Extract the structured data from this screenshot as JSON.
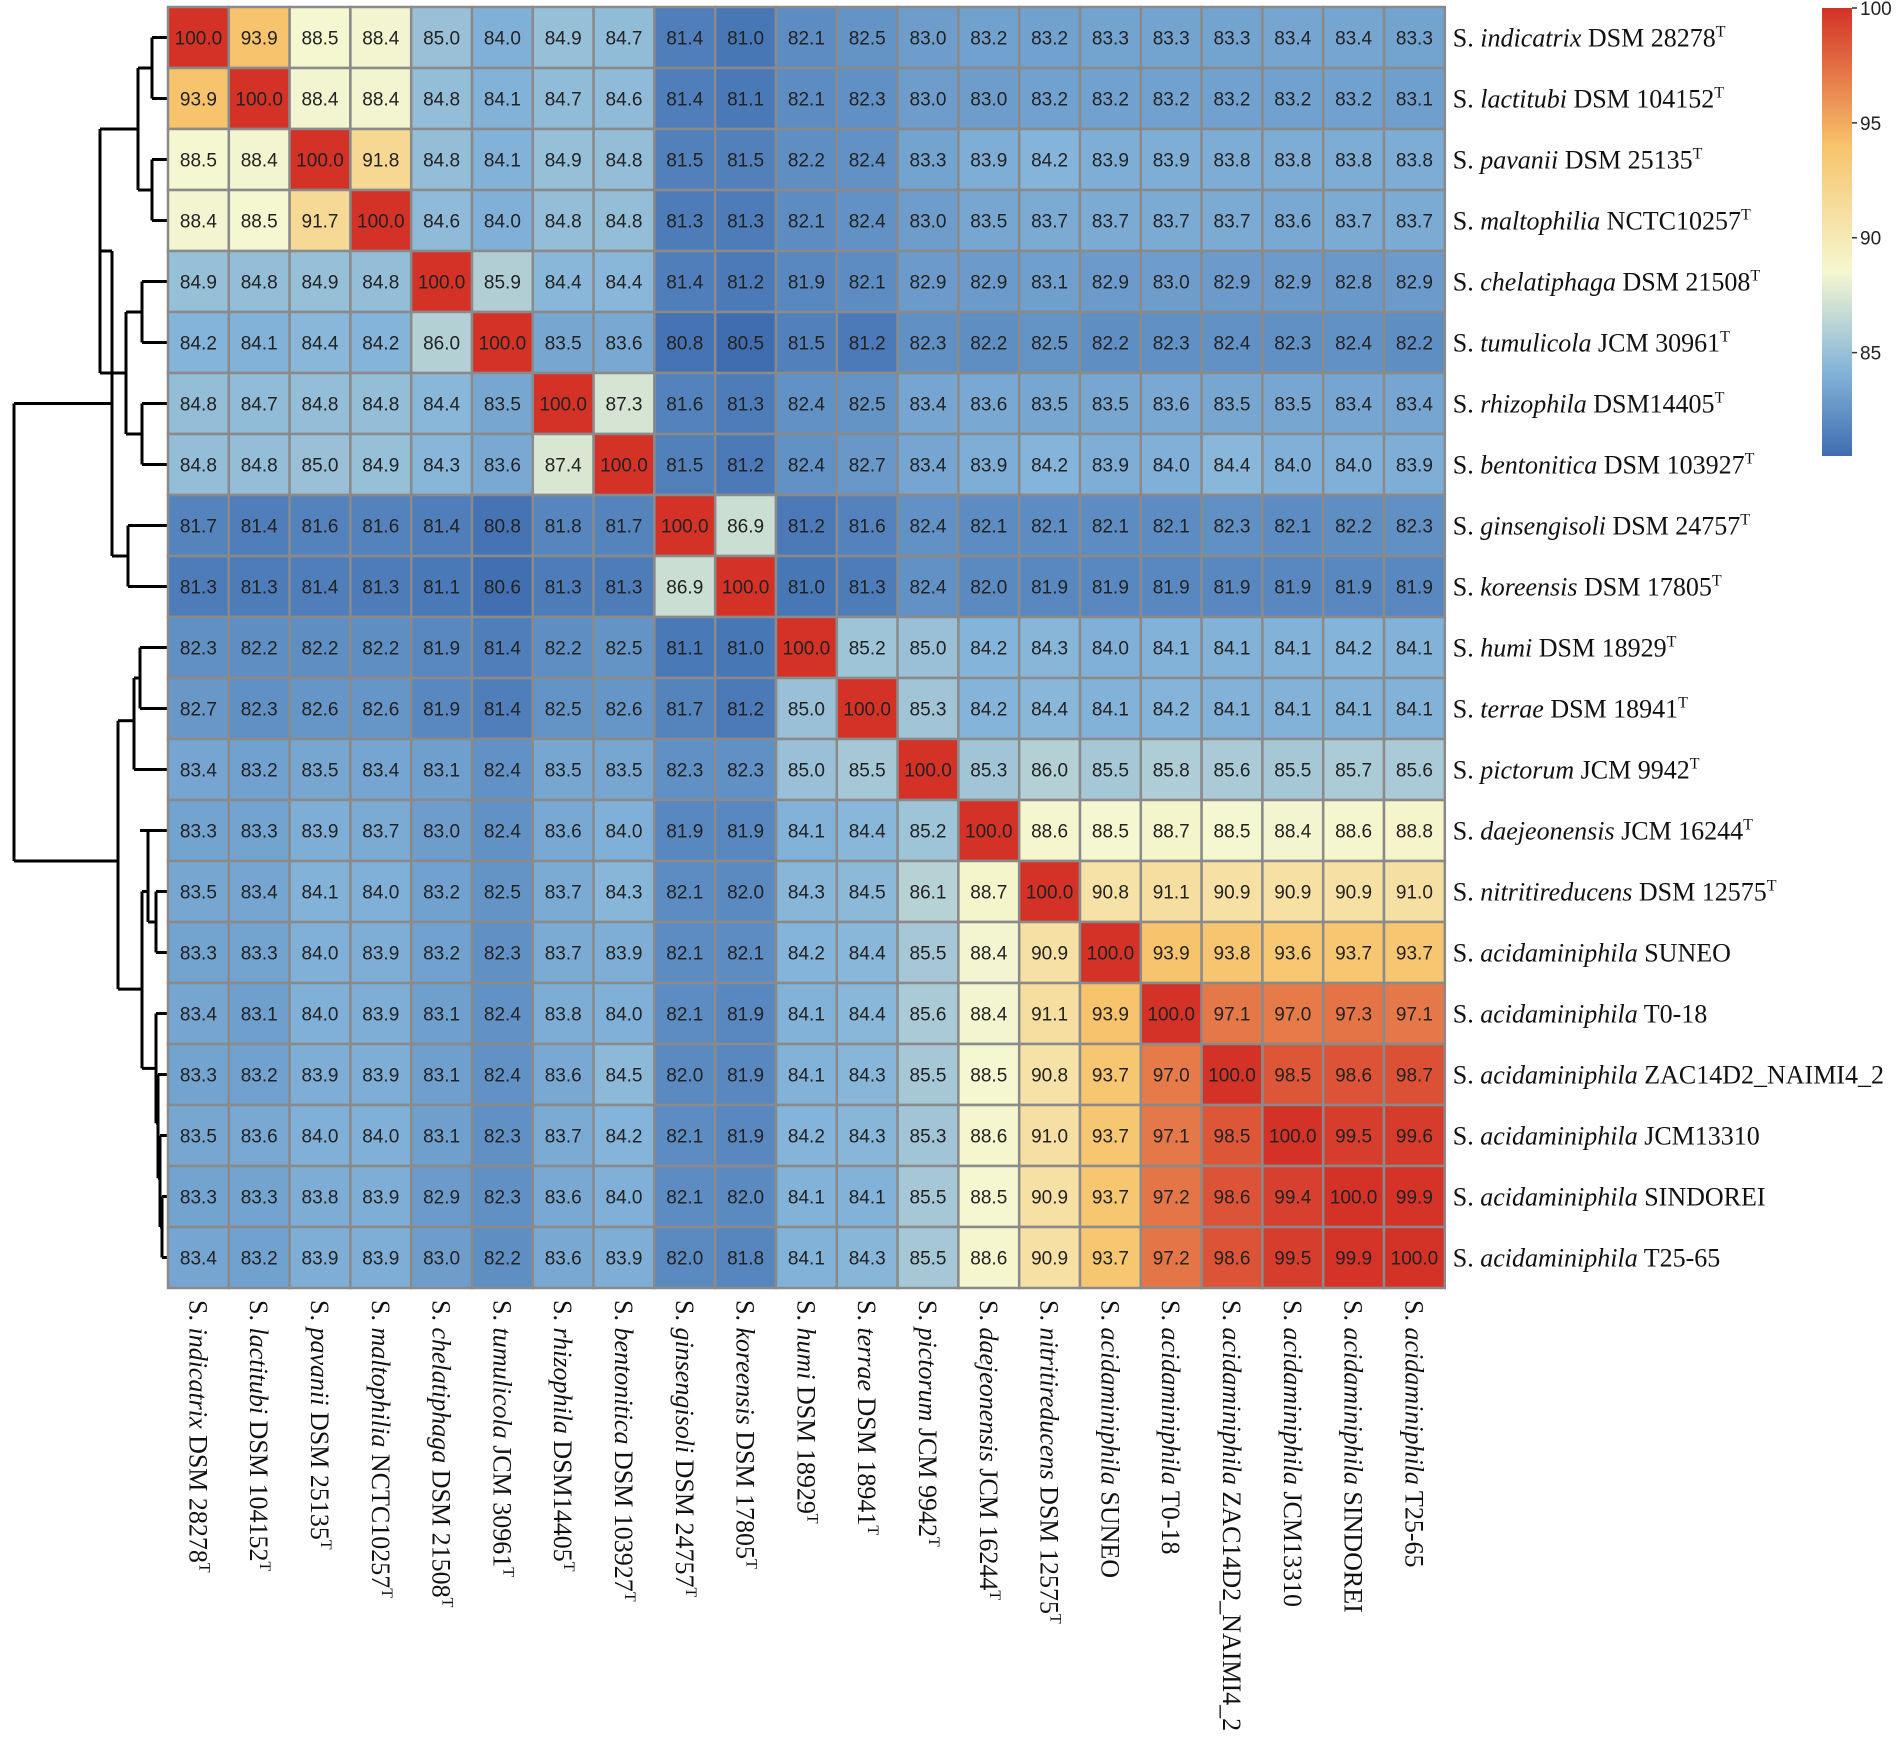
{
  "chart_data": {
    "type": "heatmap",
    "title": "",
    "genus": "S.",
    "strains": [
      {
        "species": "indicatrix",
        "strain": "DSM 28278",
        "sup": "T"
      },
      {
        "species": "lactitubi",
        "strain": "DSM 104152",
        "sup": "T"
      },
      {
        "species": "pavanii",
        "strain": "DSM 25135",
        "sup": "T"
      },
      {
        "species": "maltophilia",
        "strain": "NCTC10257",
        "sup": "T"
      },
      {
        "species": "chelatiphaga",
        "strain": "DSM 21508",
        "sup": "T"
      },
      {
        "species": "tumulicola",
        "strain": "JCM 30961",
        "sup": "T"
      },
      {
        "species": "rhizophila",
        "strain": "DSM14405",
        "sup": "T"
      },
      {
        "species": "bentonitica",
        "strain": "DSM 103927",
        "sup": "T"
      },
      {
        "species": "ginsengisoli",
        "strain": "DSM 24757",
        "sup": "T"
      },
      {
        "species": "koreensis",
        "strain": "DSM 17805",
        "sup": "T"
      },
      {
        "species": "humi",
        "strain": "DSM 18929",
        "sup": "T"
      },
      {
        "species": "terrae",
        "strain": "DSM 18941",
        "sup": "T"
      },
      {
        "species": "pictorum",
        "strain": "JCM 9942",
        "sup": "T"
      },
      {
        "species": "daejeonensis",
        "strain": "JCM 16244",
        "sup": "T"
      },
      {
        "species": "nitritireducens",
        "strain": "DSM 12575",
        "sup": "T"
      },
      {
        "species": "acidaminiphila",
        "strain": "SUNEO",
        "sup": ""
      },
      {
        "species": "acidaminiphila",
        "strain": "T0-18",
        "sup": ""
      },
      {
        "species": "acidaminiphila",
        "strain": "ZAC14D2_NAIMI4_2",
        "sup": ""
      },
      {
        "species": "acidaminiphila",
        "strain": "JCM13310",
        "sup": ""
      },
      {
        "species": "acidaminiphila",
        "strain": "SINDOREI",
        "sup": ""
      },
      {
        "species": "acidaminiphila",
        "strain": "T25-65",
        "sup": ""
      }
    ],
    "matrix": [
      [
        100.0,
        93.9,
        88.5,
        88.4,
        85.0,
        84.0,
        84.9,
        84.7,
        81.4,
        81.0,
        82.1,
        82.5,
        83.0,
        83.2,
        83.2,
        83.3,
        83.3,
        83.3,
        83.4,
        83.4,
        83.3
      ],
      [
        93.9,
        100.0,
        88.4,
        88.4,
        84.8,
        84.1,
        84.7,
        84.6,
        81.4,
        81.1,
        82.1,
        82.3,
        83.0,
        83.0,
        83.2,
        83.2,
        83.2,
        83.2,
        83.2,
        83.2,
        83.1
      ],
      [
        88.5,
        88.4,
        100.0,
        91.8,
        84.8,
        84.1,
        84.9,
        84.8,
        81.5,
        81.5,
        82.2,
        82.4,
        83.3,
        83.9,
        84.2,
        83.9,
        83.9,
        83.8,
        83.8,
        83.8,
        83.8
      ],
      [
        88.4,
        88.5,
        91.7,
        100.0,
        84.6,
        84.0,
        84.8,
        84.8,
        81.3,
        81.3,
        82.1,
        82.4,
        83.0,
        83.5,
        83.7,
        83.7,
        83.7,
        83.7,
        83.6,
        83.7,
        83.7
      ],
      [
        84.9,
        84.8,
        84.9,
        84.8,
        100.0,
        85.9,
        84.4,
        84.4,
        81.4,
        81.2,
        81.9,
        82.1,
        82.9,
        82.9,
        83.1,
        82.9,
        83.0,
        82.9,
        82.9,
        82.8,
        82.9
      ],
      [
        84.2,
        84.1,
        84.4,
        84.2,
        86.0,
        100.0,
        83.5,
        83.6,
        80.8,
        80.5,
        81.5,
        81.2,
        82.3,
        82.2,
        82.5,
        82.2,
        82.3,
        82.4,
        82.3,
        82.4,
        82.2
      ],
      [
        84.8,
        84.7,
        84.8,
        84.8,
        84.4,
        83.5,
        100.0,
        87.3,
        81.6,
        81.3,
        82.4,
        82.5,
        83.4,
        83.6,
        83.5,
        83.5,
        83.6,
        83.5,
        83.5,
        83.4,
        83.4
      ],
      [
        84.8,
        84.8,
        85.0,
        84.9,
        84.3,
        83.6,
        87.4,
        100.0,
        81.5,
        81.2,
        82.4,
        82.7,
        83.4,
        83.9,
        84.2,
        83.9,
        84.0,
        84.4,
        84.0,
        84.0,
        83.9
      ],
      [
        81.7,
        81.4,
        81.6,
        81.6,
        81.4,
        80.8,
        81.8,
        81.7,
        100.0,
        86.9,
        81.2,
        81.6,
        82.4,
        82.1,
        82.1,
        82.1,
        82.1,
        82.3,
        82.1,
        82.2,
        82.3
      ],
      [
        81.3,
        81.3,
        81.4,
        81.3,
        81.1,
        80.6,
        81.3,
        81.3,
        86.9,
        100.0,
        81.0,
        81.3,
        82.4,
        82.0,
        81.9,
        81.9,
        81.9,
        81.9,
        81.9,
        81.9,
        81.9
      ],
      [
        82.3,
        82.2,
        82.2,
        82.2,
        81.9,
        81.4,
        82.2,
        82.5,
        81.1,
        81.0,
        100.0,
        85.2,
        85.0,
        84.2,
        84.3,
        84.0,
        84.1,
        84.1,
        84.1,
        84.2,
        84.1
      ],
      [
        82.7,
        82.3,
        82.6,
        82.6,
        81.9,
        81.4,
        82.5,
        82.6,
        81.7,
        81.2,
        85.0,
        100.0,
        85.3,
        84.2,
        84.4,
        84.1,
        84.2,
        84.1,
        84.1,
        84.1,
        84.1
      ],
      [
        83.4,
        83.2,
        83.5,
        83.4,
        83.1,
        82.4,
        83.5,
        83.5,
        82.3,
        82.3,
        85.0,
        85.5,
        100.0,
        85.3,
        86.0,
        85.5,
        85.8,
        85.6,
        85.5,
        85.7,
        85.6
      ],
      [
        83.3,
        83.3,
        83.9,
        83.7,
        83.0,
        82.4,
        83.6,
        84.0,
        81.9,
        81.9,
        84.1,
        84.4,
        85.2,
        100.0,
        88.6,
        88.5,
        88.7,
        88.5,
        88.4,
        88.6,
        88.8
      ],
      [
        83.5,
        83.4,
        84.1,
        84.0,
        83.2,
        82.5,
        83.7,
        84.3,
        82.1,
        82.0,
        84.3,
        84.5,
        86.1,
        88.7,
        100.0,
        90.8,
        91.1,
        90.9,
        90.9,
        90.9,
        91.0
      ],
      [
        83.3,
        83.3,
        84.0,
        83.9,
        83.2,
        82.3,
        83.7,
        83.9,
        82.1,
        82.1,
        84.2,
        84.4,
        85.5,
        88.4,
        90.9,
        100.0,
        93.9,
        93.8,
        93.6,
        93.7,
        93.7
      ],
      [
        83.4,
        83.1,
        84.0,
        83.9,
        83.1,
        82.4,
        83.8,
        84.0,
        82.1,
        81.9,
        84.1,
        84.4,
        85.6,
        88.4,
        91.1,
        93.9,
        100.0,
        97.1,
        97.0,
        97.3,
        97.1
      ],
      [
        83.3,
        83.2,
        83.9,
        83.9,
        83.1,
        82.4,
        83.6,
        84.5,
        82.0,
        81.9,
        84.1,
        84.3,
        85.5,
        88.5,
        90.8,
        93.7,
        97.0,
        100.0,
        98.5,
        98.6,
        98.7
      ],
      [
        83.5,
        83.6,
        84.0,
        84.0,
        83.1,
        82.3,
        83.7,
        84.2,
        82.1,
        81.9,
        84.2,
        84.3,
        85.3,
        88.6,
        91.0,
        93.7,
        97.1,
        98.5,
        100.0,
        99.5,
        99.6
      ],
      [
        83.3,
        83.3,
        83.8,
        83.9,
        82.9,
        82.3,
        83.6,
        84.0,
        82.1,
        82.0,
        84.1,
        84.1,
        85.5,
        88.5,
        90.9,
        93.7,
        97.2,
        98.6,
        99.4,
        100.0,
        99.9
      ],
      [
        83.4,
        83.2,
        83.9,
        83.9,
        83.0,
        82.2,
        83.6,
        83.9,
        82.0,
        81.8,
        84.1,
        84.3,
        85.5,
        88.6,
        90.9,
        93.7,
        97.2,
        98.6,
        99.5,
        99.9,
        100.0
      ]
    ],
    "colorbar": {
      "min": 80.5,
      "max": 100,
      "ticks": [
        100,
        95,
        90,
        85
      ]
    },
    "colors": {
      "low": "#3f6db0",
      "mid_low": "#84b4d9",
      "mid": "#f5f7d0",
      "mid_high": "#f7c36b",
      "high": "#d43127",
      "grid": "#8a8a8a"
    }
  }
}
